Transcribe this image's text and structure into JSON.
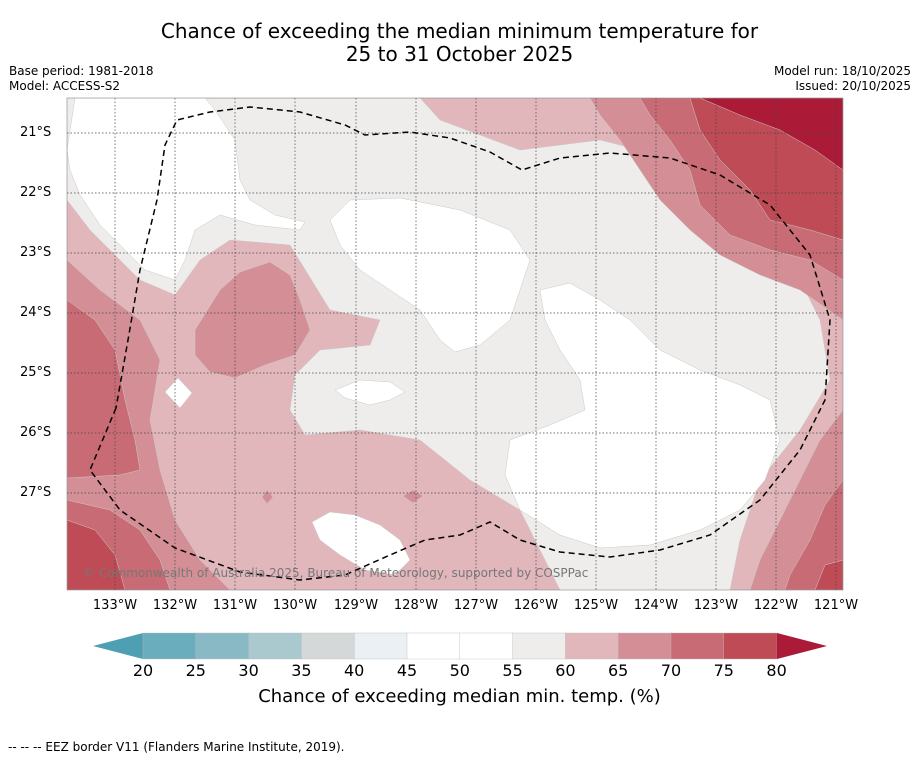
{
  "title": {
    "line1": "Chance of exceeding the median minimum temperature for",
    "line2": "25 to 31 October 2025"
  },
  "meta": {
    "base_period": "Base period: 1981-2018",
    "model": "Model: ACCESS-S2",
    "model_run": "Model run: 18/10/2025",
    "issued": "Issued: 20/10/2025"
  },
  "map": {
    "copyright": "© Commonwealth of Australia 2025, Bureau of Meteorology, supported by COSPPac",
    "lon_labels": [
      "133°W",
      "132°W",
      "131°W",
      "130°W",
      "129°W",
      "128°W",
      "127°W",
      "126°W",
      "125°W",
      "124°W",
      "123°W",
      "122°W",
      "121°W"
    ],
    "lat_labels": [
      "21°S",
      "22°S",
      "23°S",
      "24°S",
      "25°S",
      "26°S",
      "27°S"
    ]
  },
  "colorbar": {
    "ticks": [
      "20",
      "25",
      "30",
      "35",
      "40",
      "45",
      "50",
      "55",
      "60",
      "65",
      "70",
      "75",
      "80"
    ],
    "colors": [
      "#6aaebd",
      "#8ab9c6",
      "#a9c9cf",
      "#d4d8d9",
      "#eaf0f3",
      "#ffffff",
      "#ffffff",
      "#eeedeb",
      "#e1b7bc",
      "#d48e96",
      "#c96b74",
      "#bf4b56",
      "#ab1a36"
    ],
    "low_color": "#4e9fb1",
    "high_color": "#ab1a36",
    "title": "Chance of exceeding median min. temp. (%)"
  },
  "legend": {
    "eez": "--  --  -- EEZ border V11 (Flanders Marine Institute, 2019)."
  }
}
